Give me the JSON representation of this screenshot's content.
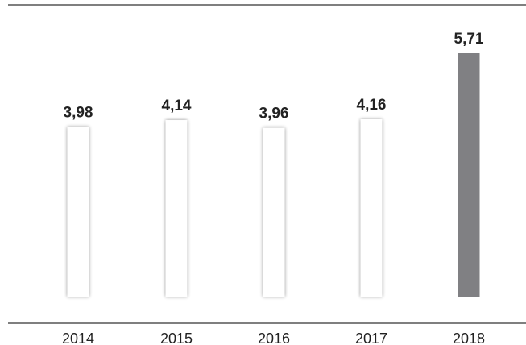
{
  "chart_data": {
    "type": "bar",
    "categories": [
      "2014",
      "2015",
      "2016",
      "2017",
      "2018"
    ],
    "values": [
      3.98,
      4.14,
      3.96,
      4.16,
      5.71
    ],
    "value_labels": [
      "3,98",
      "4,14",
      "3,96",
      "4,16",
      "5,71"
    ],
    "title": "",
    "xlabel": "",
    "ylabel": "",
    "ylim": [
      0,
      5.71
    ],
    "grid": false,
    "legend": "none",
    "highlight_index": 4,
    "colors": {
      "bar_fill": "#ffffff",
      "bar_shadow": "#d9d9d9",
      "highlight_fill": "#808083",
      "axis_line": "#333333",
      "text": "#222222"
    }
  }
}
